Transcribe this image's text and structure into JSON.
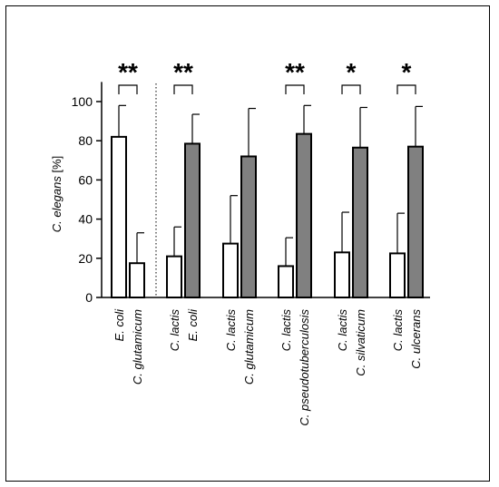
{
  "chart_data": {
    "type": "bar",
    "ylabel_species": "C. elegans",
    "ylabel_unit": "[%]",
    "ylim": [
      0,
      110
    ],
    "yticks": [
      "0",
      "20",
      "40",
      "60",
      "80",
      "100"
    ],
    "grid": false,
    "colors": {
      "white_bar": "#ffffff",
      "grey_bar": "#808080",
      "stroke": "#000000"
    },
    "groups": [
      {
        "bars": [
          {
            "label": "E. coli",
            "value": 82,
            "error": 16,
            "fill": "white"
          },
          {
            "label": "C. glutamicum",
            "value": 17.5,
            "error": 15.5,
            "fill": "white"
          }
        ],
        "significance": "**"
      },
      {
        "bars": [
          {
            "label": "C. lactis",
            "value": 21,
            "error": 15,
            "fill": "white"
          },
          {
            "label": "E. coli",
            "value": 78.5,
            "error": 15,
            "fill": "grey"
          }
        ],
        "significance": "**"
      },
      {
        "bars": [
          {
            "label": "C. lactis",
            "value": 27.5,
            "error": 24.5,
            "fill": "white"
          },
          {
            "label": "C. glutamicum",
            "value": 72,
            "error": 24.5,
            "fill": "grey"
          }
        ],
        "significance": ""
      },
      {
        "bars": [
          {
            "label": "C. lactis",
            "value": 16,
            "error": 14.5,
            "fill": "white"
          },
          {
            "label": "C. pseudotuberculosis",
            "value": 83.5,
            "error": 14.5,
            "fill": "grey"
          }
        ],
        "significance": "**"
      },
      {
        "bars": [
          {
            "label": "C. lactis",
            "value": 23,
            "error": 20.5,
            "fill": "white"
          },
          {
            "label": "C. silvaticum",
            "value": 76.5,
            "error": 20.5,
            "fill": "grey"
          }
        ],
        "significance": "*"
      },
      {
        "bars": [
          {
            "label": "C. lactis",
            "value": 22.5,
            "error": 20.5,
            "fill": "white"
          },
          {
            "label": "C. ulcerans",
            "value": 77,
            "error": 20.5,
            "fill": "grey"
          }
        ],
        "significance": "*"
      }
    ],
    "divider_after_group": 1
  }
}
